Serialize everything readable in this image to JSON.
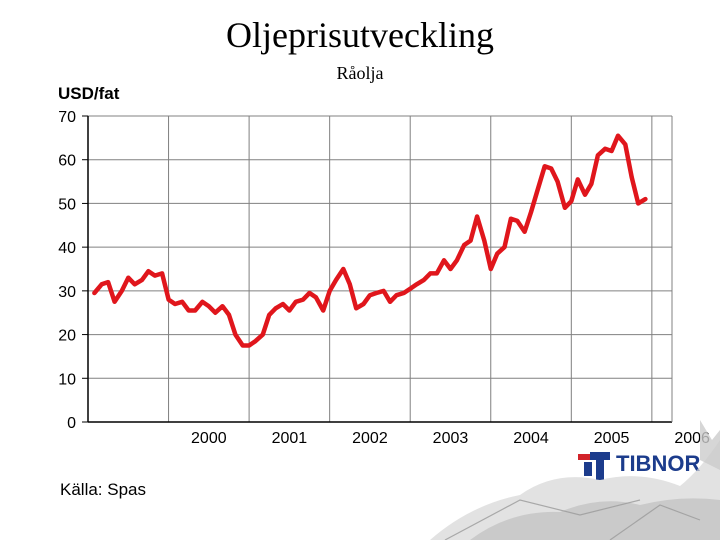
{
  "title": "Oljeprisutveckling",
  "subtitle": "Råolja",
  "y_unit_label": "USD/fat",
  "source": "Källa: Spas",
  "logo": {
    "name": "TIBNOR",
    "colors": {
      "blue": "#1c3c8c",
      "red": "#d2232a"
    }
  },
  "colors": {
    "line": "#e0161c",
    "grid": "#000000"
  },
  "chart_data": {
    "type": "line",
    "title": "Oljeprisutveckling",
    "subtitle": "Råolja",
    "ylabel": "USD/fat",
    "ylim": [
      0,
      70
    ],
    "yticks": [
      0,
      10,
      20,
      30,
      40,
      50,
      60,
      70
    ],
    "xlim": [
      1999.0,
      2006.25
    ],
    "year_labels": [
      "2000",
      "2001",
      "2002",
      "2003",
      "2004",
      "2005",
      "2006"
    ],
    "year_label_positions": [
      2000.0,
      2001.0,
      2002.0,
      2003.0,
      2004.0,
      2005.0,
      2006.0
    ],
    "grid": true,
    "series": [
      {
        "values": [
          [
            1999.08,
            29.5
          ],
          [
            1999.17,
            31.5
          ],
          [
            1999.25,
            32
          ],
          [
            1999.33,
            27.5
          ],
          [
            1999.42,
            30
          ],
          [
            1999.5,
            33
          ],
          [
            1999.58,
            31.5
          ],
          [
            1999.67,
            32.5
          ],
          [
            1999.75,
            34.5
          ],
          [
            1999.83,
            33.5
          ],
          [
            1999.92,
            34
          ],
          [
            2000.0,
            28
          ],
          [
            2000.08,
            27
          ],
          [
            2000.17,
            27.5
          ],
          [
            2000.25,
            25.5
          ],
          [
            2000.33,
            25.5
          ],
          [
            2000.42,
            27.5
          ],
          [
            2000.5,
            26.5
          ],
          [
            2000.58,
            25
          ],
          [
            2000.67,
            26.5
          ],
          [
            2000.75,
            24.5
          ],
          [
            2000.83,
            20
          ],
          [
            2000.92,
            17.5
          ],
          [
            2001.0,
            17.5
          ],
          [
            2001.08,
            18.5
          ],
          [
            2001.17,
            20
          ],
          [
            2001.25,
            24.5
          ],
          [
            2001.33,
            26
          ],
          [
            2001.42,
            27
          ],
          [
            2001.5,
            25.5
          ],
          [
            2001.58,
            27.5
          ],
          [
            2001.67,
            28
          ],
          [
            2001.75,
            29.5
          ],
          [
            2001.83,
            28.5
          ],
          [
            2001.92,
            25.5
          ],
          [
            2002.0,
            30
          ],
          [
            2002.08,
            32.5
          ],
          [
            2002.17,
            35
          ],
          [
            2002.25,
            31.5
          ],
          [
            2002.33,
            26
          ],
          [
            2002.42,
            27
          ],
          [
            2002.5,
            29
          ],
          [
            2002.58,
            29.5
          ],
          [
            2002.67,
            30
          ],
          [
            2002.75,
            27.5
          ],
          [
            2002.83,
            29
          ],
          [
            2002.92,
            29.5
          ],
          [
            2003.0,
            30.5
          ],
          [
            2003.08,
            31.5
          ],
          [
            2003.17,
            32.5
          ],
          [
            2003.25,
            34
          ],
          [
            2003.33,
            34
          ],
          [
            2003.42,
            37
          ],
          [
            2003.5,
            35
          ],
          [
            2003.58,
            37
          ],
          [
            2003.67,
            40.5
          ],
          [
            2003.75,
            41.5
          ],
          [
            2003.83,
            47
          ],
          [
            2003.92,
            41.5
          ],
          [
            2004.0,
            35
          ],
          [
            2004.08,
            38.5
          ],
          [
            2004.17,
            40
          ],
          [
            2004.25,
            46.5
          ],
          [
            2004.33,
            46
          ],
          [
            2004.42,
            43.5
          ],
          [
            2004.5,
            48
          ],
          [
            2004.58,
            53
          ],
          [
            2004.67,
            58.5
          ],
          [
            2004.75,
            58
          ],
          [
            2004.83,
            55
          ],
          [
            2004.92,
            49
          ],
          [
            2005.0,
            50.5
          ],
          [
            2005.08,
            55.5
          ],
          [
            2005.17,
            52
          ],
          [
            2005.25,
            54.5
          ],
          [
            2005.33,
            61
          ],
          [
            2005.42,
            62.5
          ],
          [
            2005.5,
            62
          ],
          [
            2005.58,
            65.5
          ],
          [
            2005.67,
            63.5
          ],
          [
            2005.75,
            56
          ],
          [
            2005.83,
            50
          ],
          [
            2005.92,
            51
          ]
        ]
      }
    ]
  }
}
